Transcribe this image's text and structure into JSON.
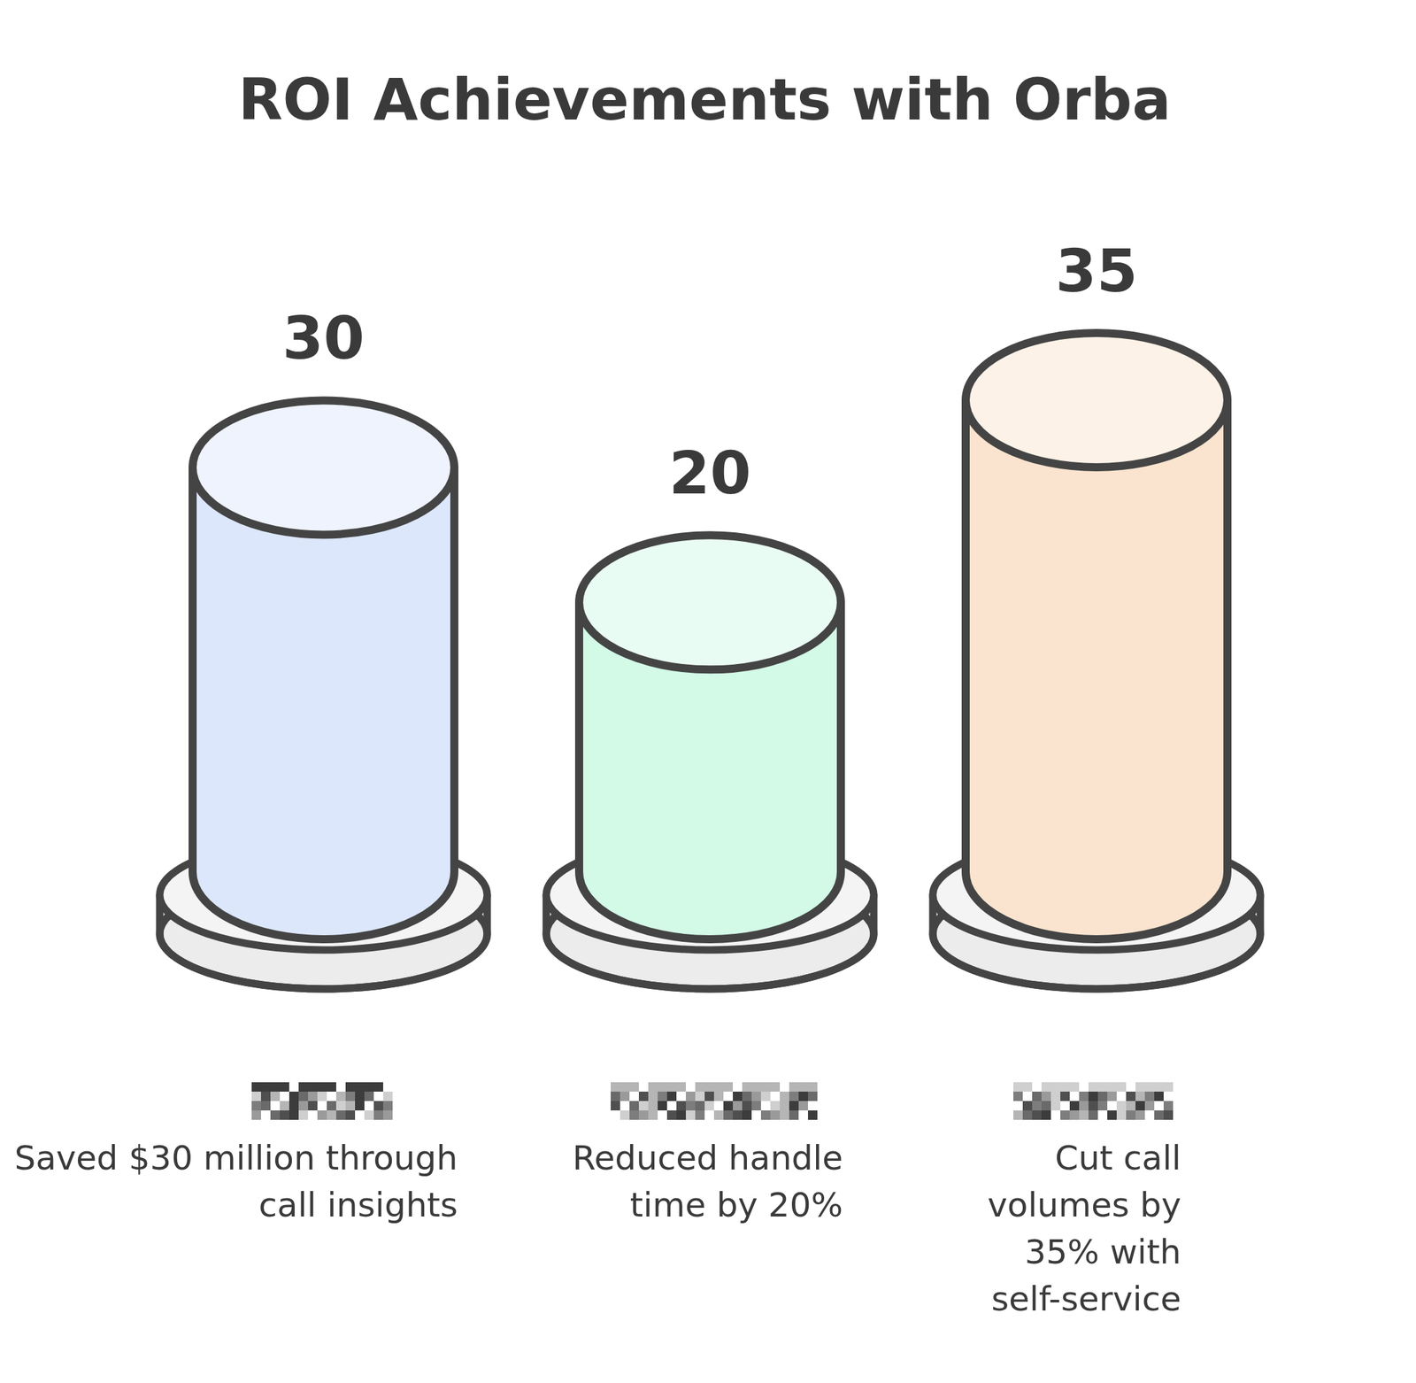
{
  "chart_data": {
    "type": "bar",
    "title": "ROI Achievements with Orba",
    "categories": [
      "Saved $30 million through call insights",
      "Reduced handle time by 20%",
      "Cut call volumes by 35% with self-service"
    ],
    "values": [
      30,
      20,
      35
    ],
    "colors": [
      "#dde7fb",
      "#d3f9e7",
      "#fae4cf"
    ],
    "ylim": [
      0,
      35
    ],
    "data_labels": true,
    "tick_labels": "x"
  }
}
